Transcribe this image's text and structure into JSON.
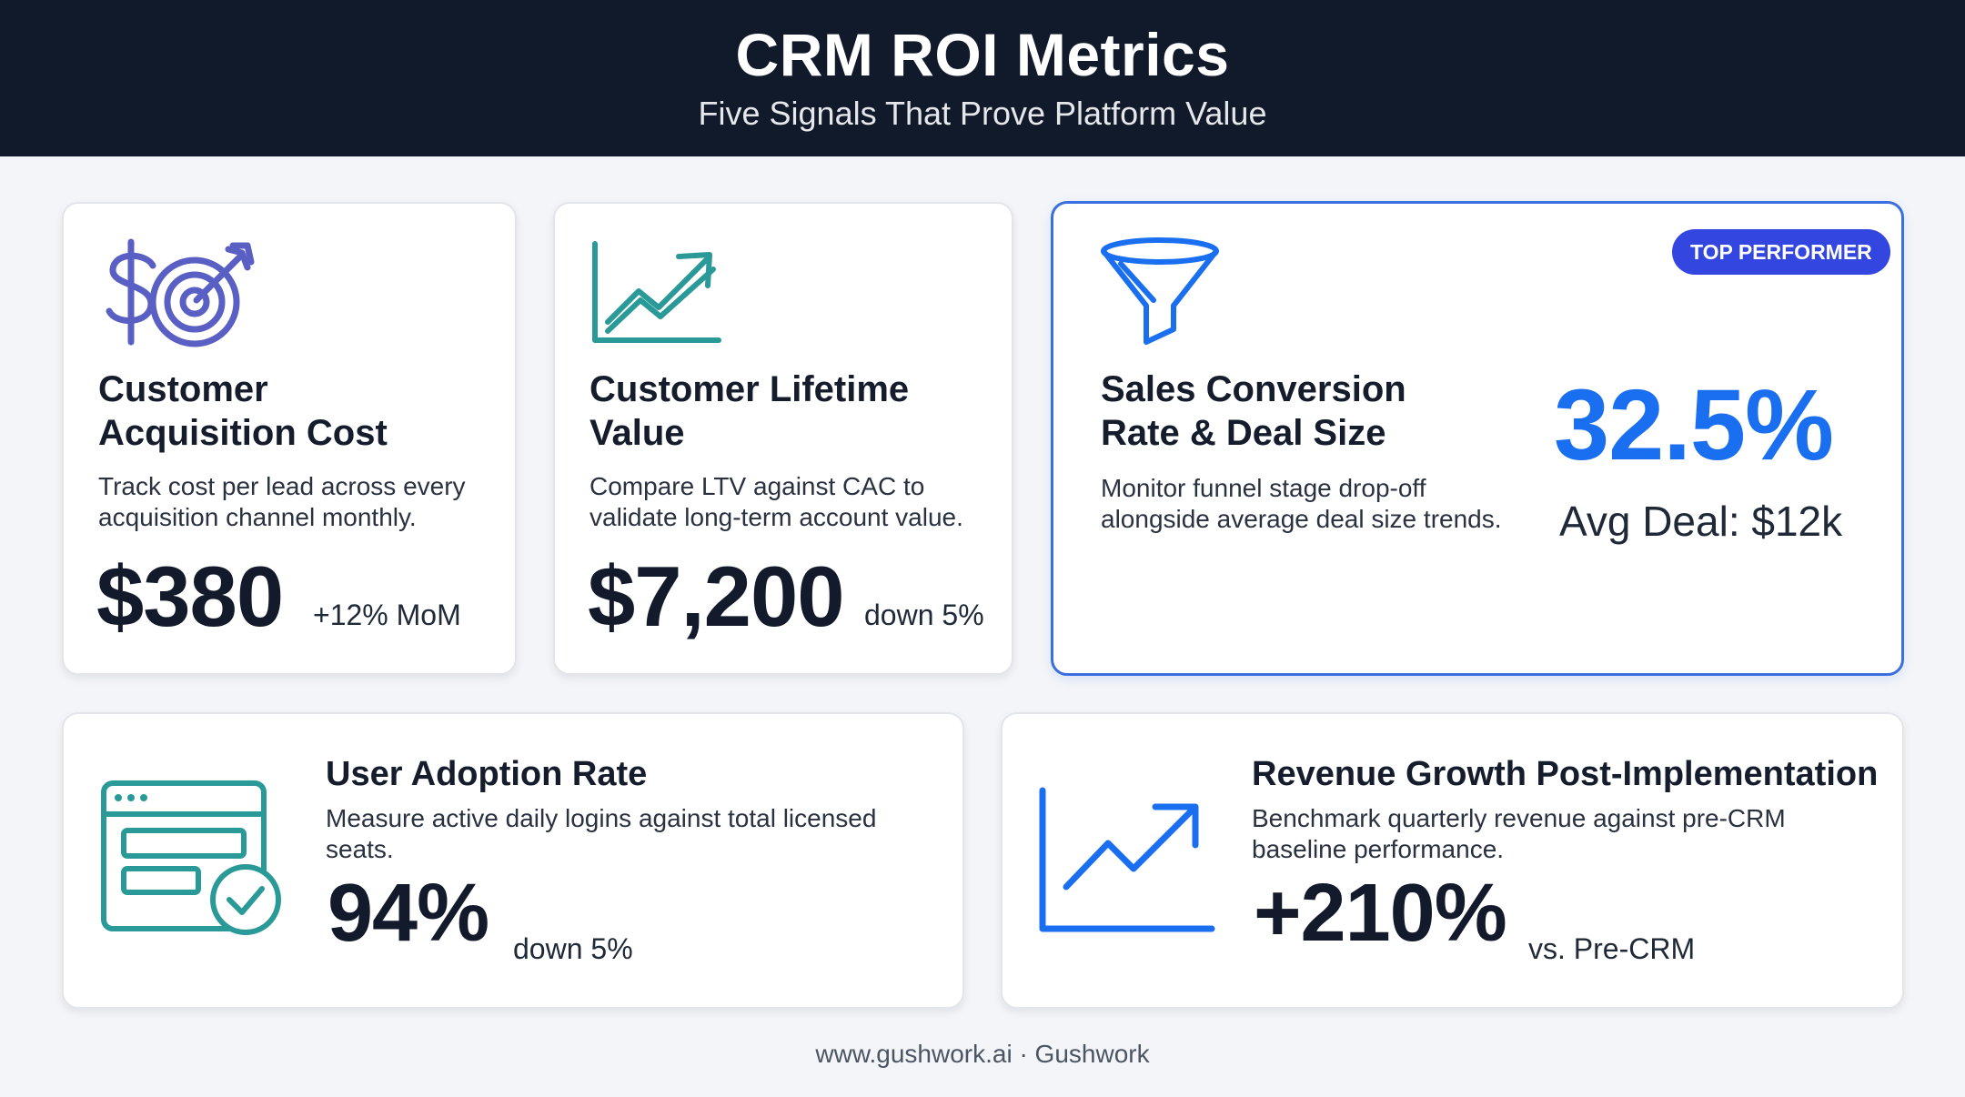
{
  "header": {
    "title": "CRM ROI Metrics",
    "subtitle": "Five Signals That Prove Platform Value"
  },
  "cards": {
    "cac": {
      "icon": "dollar-target-icon",
      "title_line1": "Customer",
      "title_line2": "Acquisition Cost",
      "desc_line1": "Track cost per lead across every",
      "desc_line2": "acquisition channel monthly.",
      "value": "$380",
      "delta": "+12% MoM"
    },
    "ltv": {
      "icon": "trend-chart-icon",
      "title_line1": "Customer Lifetime",
      "title_line2": "Value",
      "desc_line1": "Compare LTV against CAC to",
      "desc_line2": "validate long-term account value.",
      "value": "$7,200",
      "delta": "down 5%"
    },
    "conversion": {
      "icon": "funnel-icon",
      "badge": "TOP PERFORMER",
      "title_line1": "Sales Conversion",
      "title_line2": "Rate & Deal Size",
      "desc_line1": "Monitor funnel stage drop-off",
      "desc_line2": "alongside average deal size trends.",
      "value": "32.5%",
      "secondary": "Avg Deal: $12k"
    },
    "adoption": {
      "icon": "browser-check-icon",
      "title": "User Adoption Rate",
      "desc_line1": "Measure active daily logins against total licensed",
      "desc_line2": "seats.",
      "value": "94%",
      "delta": "down 5%"
    },
    "revenue": {
      "icon": "growth-chart-icon",
      "title": "Revenue Growth Post-Implementation",
      "desc_line1": "Benchmark quarterly revenue against pre-CRM",
      "desc_line2": "baseline performance.",
      "value": "+210%",
      "delta": "vs. Pre-CRM"
    }
  },
  "footer": {
    "text": "www.gushwork.ai · Gushwork"
  },
  "colors": {
    "header_bg": "#111a2b",
    "accent_blue": "#1a6ff0",
    "badge_bg": "#3347e0",
    "teal": "#2a9a98",
    "indigo": "#5a5fc4"
  }
}
